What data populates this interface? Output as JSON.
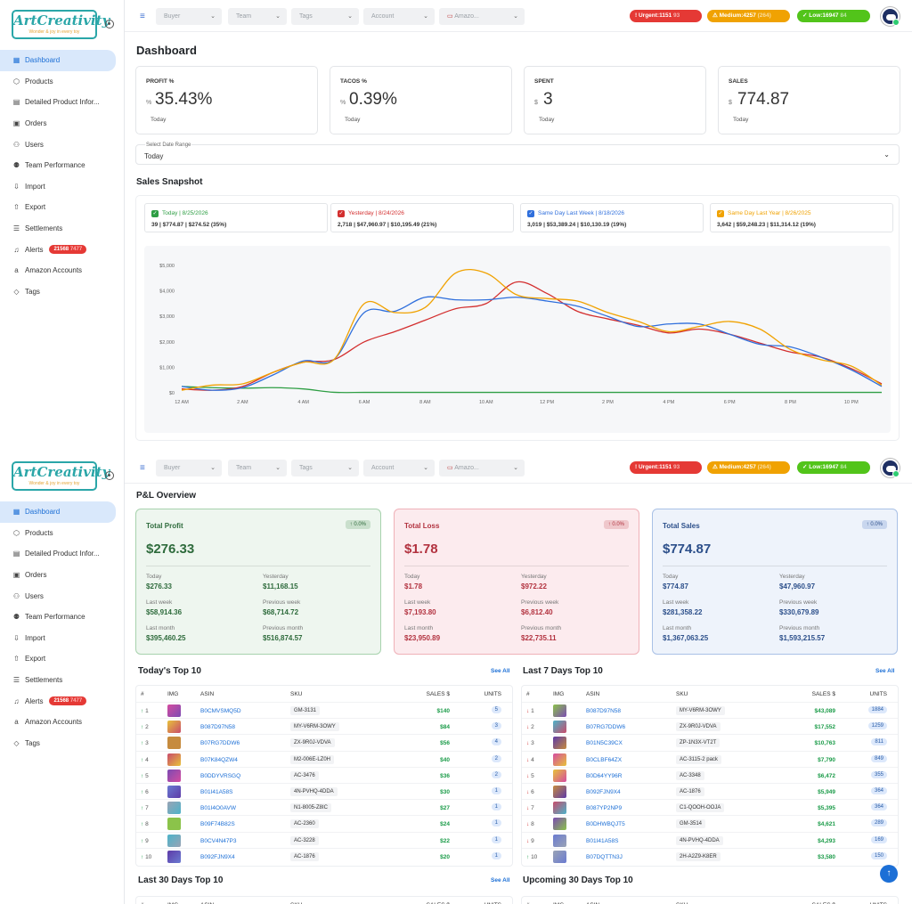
{
  "app": {
    "logo_text": "ArtCreativity",
    "logo_tagline": "Wonder & joy in every toy"
  },
  "sidebar": {
    "items": [
      {
        "label": "Dashboard",
        "icon": "grid-icon"
      },
      {
        "label": "Products",
        "icon": "box-icon"
      },
      {
        "label": "Detailed Product Infor...",
        "icon": "file-icon"
      },
      {
        "label": "Orders",
        "icon": "briefcase-icon"
      },
      {
        "label": "Users",
        "icon": "users-icon"
      },
      {
        "label": "Team Performance",
        "icon": "team-icon"
      },
      {
        "label": "Import",
        "icon": "import-icon"
      },
      {
        "label": "Export",
        "icon": "export-icon"
      },
      {
        "label": "Settlements",
        "icon": "settlements-icon"
      },
      {
        "label": "Alerts",
        "icon": "bell-icon",
        "badge": "21568",
        "badge_extra": "7477"
      },
      {
        "label": "Amazon Accounts",
        "icon": "amazon-icon"
      },
      {
        "label": "Tags",
        "icon": "tag-icon"
      }
    ]
  },
  "topbar": {
    "filters": [
      {
        "placeholder": "Buyer"
      },
      {
        "placeholder": "Team"
      },
      {
        "placeholder": "Tags"
      },
      {
        "placeholder": "Account"
      },
      {
        "placeholder": "Amazo..."
      }
    ],
    "pills": [
      {
        "label": "Urgent:1151",
        "extra": "93",
        "color": "#e53935"
      },
      {
        "label": "Medium:4257",
        "extra": "(264)",
        "color": "#f0a202"
      },
      {
        "label": "Low:16947",
        "extra": "84",
        "color": "#52c41a"
      }
    ]
  },
  "dashboard": {
    "title": "Dashboard",
    "kpis": [
      {
        "label": "PROFIT %",
        "unit": "%",
        "value": "35.43%",
        "sub": "Today"
      },
      {
        "label": "TACOS %",
        "unit": "%",
        "value": "0.39%",
        "sub": "Today"
      },
      {
        "label": "SPENT",
        "unit": "$",
        "value": "3",
        "sub": "Today"
      },
      {
        "label": "SALES",
        "unit": "$",
        "value": "774.87",
        "sub": "Today"
      }
    ],
    "date_range": {
      "label": "Select Date Range",
      "value": "Today"
    },
    "snapshot_title": "Sales Snapshot",
    "legend": [
      {
        "title": "Today | 8/25/2026",
        "values": "39 | $774.87 | $274.52 (35%)",
        "color": "#2e9e44"
      },
      {
        "title": "Yesterday | 8/24/2026",
        "values": "2,718 | $47,960.97 | $10,195.49 (21%)",
        "color": "#d32f2f"
      },
      {
        "title": "Same Day Last Week | 8/18/2026",
        "values": "3,019 | $53,389.24 | $10,130.19 (19%)",
        "color": "#2f6fdc"
      },
      {
        "title": "Same Day Last Year | 8/26/2025",
        "values": "3,642 | $59,248.23 | $11,314.12 (19%)",
        "color": "#f0a202"
      }
    ]
  },
  "chart_data": {
    "type": "line",
    "x": [
      "12 AM",
      "1 AM",
      "2 AM",
      "3 AM",
      "4 AM",
      "5 AM",
      "6 AM",
      "7 AM",
      "8 AM",
      "9 AM",
      "10 AM",
      "11 AM",
      "12 PM",
      "1 PM",
      "2 PM",
      "3 PM",
      "4 PM",
      "5 PM",
      "6 PM",
      "7 PM",
      "8 PM",
      "9 PM",
      "10 PM",
      "11 PM"
    ],
    "xticks": [
      "12 AM",
      "2 AM",
      "4 AM",
      "6 AM",
      "8 AM",
      "10 AM",
      "12 PM",
      "2 PM",
      "4 PM",
      "6 PM",
      "8 PM",
      "10 PM"
    ],
    "yticks": [
      "$0",
      "$1,000",
      "$2,000",
      "$3,000",
      "$4,000",
      "$5,000"
    ],
    "ylim": [
      0,
      5000
    ],
    "series": [
      {
        "color": "#2e9e44",
        "values": [
          250,
          200,
          180,
          200,
          150,
          20,
          15,
          15,
          15,
          15,
          15,
          15,
          15,
          15,
          15,
          15,
          15,
          15,
          15,
          15,
          15,
          15,
          15,
          15
        ]
      },
      {
        "color": "#d32f2f",
        "values": [
          150,
          100,
          250,
          800,
          1200,
          1300,
          2000,
          2400,
          2850,
          3300,
          3500,
          4350,
          3900,
          3200,
          2900,
          2650,
          2350,
          2500,
          2300,
          1950,
          1600,
          1400,
          950,
          350
        ]
      },
      {
        "color": "#2f6fdc",
        "values": [
          250,
          100,
          200,
          700,
          1250,
          1300,
          3150,
          3200,
          3750,
          3650,
          3650,
          3750,
          3600,
          3400,
          3000,
          2600,
          2700,
          2700,
          2300,
          1900,
          1800,
          1400,
          900,
          250
        ]
      },
      {
        "color": "#f0a202",
        "values": [
          100,
          300,
          350,
          800,
          1200,
          1300,
          3500,
          3150,
          3350,
          4700,
          4700,
          3850,
          3700,
          3600,
          3150,
          2800,
          2400,
          2600,
          2800,
          2500,
          1700,
          1300,
          1050,
          300
        ]
      }
    ]
  },
  "pl": {
    "title": "P&L Overview",
    "cards": [
      {
        "title": "Total Profit",
        "change": "↑ 0.0%",
        "value": "$276.33",
        "stats": [
          [
            "Today",
            "$276.33"
          ],
          [
            "Yesterday",
            "$11,168.15"
          ],
          [
            "Last week",
            "$58,914.36"
          ],
          [
            "Previous week",
            "$68,714.72"
          ],
          [
            "Last month",
            "$395,460.25"
          ],
          [
            "Previous month",
            "$516,874.57"
          ]
        ]
      },
      {
        "title": "Total Loss",
        "change": "↑ 0.0%",
        "value": "$1.78",
        "stats": [
          [
            "Today",
            "$1.78"
          ],
          [
            "Yesterday",
            "$972.22"
          ],
          [
            "Last week",
            "$7,193.80"
          ],
          [
            "Previous week",
            "$6,812.40"
          ],
          [
            "Last month",
            "$23,950.89"
          ],
          [
            "Previous month",
            "$22,735.11"
          ]
        ]
      },
      {
        "title": "Total Sales",
        "change": "↑ 0.0%",
        "value": "$774.87",
        "stats": [
          [
            "Today",
            "$774.87"
          ],
          [
            "Yesterday",
            "$47,960.97"
          ],
          [
            "Last week",
            "$281,358.22"
          ],
          [
            "Previous week",
            "$330,679.89"
          ],
          [
            "Last month",
            "$1,367,063.25"
          ],
          [
            "Previous month",
            "$1,593,215.57"
          ]
        ]
      }
    ]
  },
  "tables": {
    "headers": [
      "#",
      "IMG",
      "ASIN",
      "SKU",
      "SALES $",
      "UNITS"
    ],
    "see_all": "See All",
    "today": {
      "title": "Today's Top 10",
      "rows": [
        {
          "rank": "1",
          "trend": "↑",
          "asin": "B0CMVSMQ5D",
          "sku": "GM-3131",
          "sales": "$140",
          "units": "5"
        },
        {
          "rank": "2",
          "trend": "↑",
          "asin": "B087D97N58",
          "sku": "MY-V6RM-3OWY",
          "sales": "$84",
          "units": "3"
        },
        {
          "rank": "3",
          "trend": "↑",
          "asin": "B07RG7DDW6",
          "sku": "ZX-9R0J-VDVA",
          "sales": "$56",
          "units": "4"
        },
        {
          "rank": "4",
          "trend": "↑",
          "asin": "B07K84QZW4",
          "sku": "M2-006E-LZ0H",
          "sales": "$40",
          "units": "2"
        },
        {
          "rank": "5",
          "trend": "↑",
          "asin": "B0DDYVRSGQ",
          "sku": "AC-3476",
          "sales": "$36",
          "units": "2"
        },
        {
          "rank": "6",
          "trend": "↑",
          "asin": "B01I41A58S",
          "sku": "4N-PVHQ-4DDA",
          "sales": "$30",
          "units": "1"
        },
        {
          "rank": "7",
          "trend": "↑",
          "asin": "B01I4O0AVW",
          "sku": "N1-8005-Z8IC",
          "sales": "$27",
          "units": "1"
        },
        {
          "rank": "8",
          "trend": "↑",
          "asin": "B09F74B82S",
          "sku": "AC-2360",
          "sales": "$24",
          "units": "1"
        },
        {
          "rank": "9",
          "trend": "↑",
          "asin": "B0CV4N47P3",
          "sku": "AC-3228",
          "sales": "$22",
          "units": "1"
        },
        {
          "rank": "10",
          "trend": "↑",
          "asin": "B092FJN9X4",
          "sku": "AC-1876",
          "sales": "$20",
          "units": "1"
        }
      ]
    },
    "week": {
      "title": "Last 7 Days Top 10",
      "rows": [
        {
          "rank": "1",
          "trend": "↓",
          "asin": "B087D97N58",
          "sku": "MY-V6RM-3OWY",
          "sales": "$43,089",
          "units": "1884"
        },
        {
          "rank": "2",
          "trend": "↓",
          "asin": "B07RG7DDW6",
          "sku": "ZX-9R0J-VDVA",
          "sales": "$17,552",
          "units": "1259"
        },
        {
          "rank": "3",
          "trend": "↓",
          "asin": "B01N5C39CX",
          "sku": "ZP-1N3X-VT2T",
          "sales": "$10,763",
          "units": "811"
        },
        {
          "rank": "4",
          "trend": "↓",
          "asin": "B0CLBF64ZX",
          "sku": "AC-3115-2 pack",
          "sales": "$7,790",
          "units": "849"
        },
        {
          "rank": "5",
          "trend": "↓",
          "asin": "B0D64YY96R",
          "sku": "AC-3348",
          "sales": "$6,472",
          "units": "355"
        },
        {
          "rank": "6",
          "trend": "↓",
          "asin": "B092FJN9X4",
          "sku": "AC-1876",
          "sales": "$5,949",
          "units": "364"
        },
        {
          "rank": "7",
          "trend": "↓",
          "asin": "B087YP2NP9",
          "sku": "C1-QOOH-OOJA",
          "sales": "$5,395",
          "units": "364"
        },
        {
          "rank": "8",
          "trend": "↓",
          "asin": "B0DHWBQJT5",
          "sku": "GM-3514",
          "sales": "$4,621",
          "units": "289"
        },
        {
          "rank": "9",
          "trend": "↓",
          "asin": "B01I41A58S",
          "sku": "4N-PVHQ-4DDA",
          "sales": "$4,293",
          "units": "169"
        },
        {
          "rank": "10",
          "trend": "↑",
          "asin": "B07DQTTN3J",
          "sku": "2H-A2Z9-K8ER",
          "sales": "$3,580",
          "units": "150"
        }
      ]
    },
    "last30_title": "Last 30 Days Top 10",
    "upcoming30_title": "Upcoming 30 Days Top 10"
  }
}
